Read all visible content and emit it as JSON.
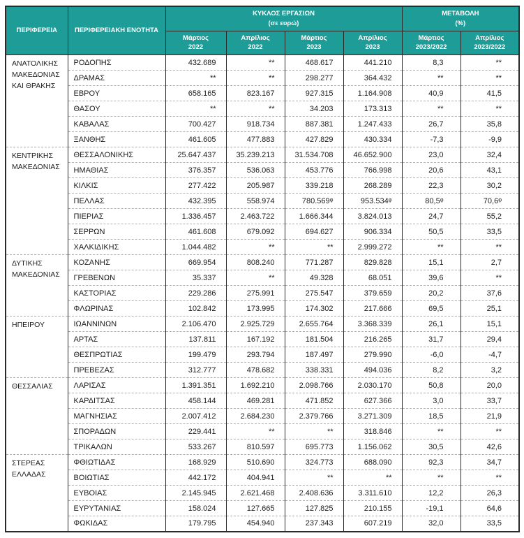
{
  "chart_data": {
    "type": "table",
    "header": {
      "col_region": "ΠΕΡΙΦΕΡΕΙΑ",
      "col_unit": "ΠΕΡΙΦΕΡΕΙΑΚΗ ΕΝΟΤΗΤΑ",
      "group_turnover": {
        "line1": "ΚΥΚΛΟΣ ΕΡΓΑΣΙΩΝ",
        "line2": "(σε ευρώ)"
      },
      "group_change": {
        "line1": "ΜΕΤΑΒΟΛΗ",
        "line2": "(%)"
      },
      "subcolumns": [
        {
          "line1": "Μάρτιος",
          "line2": "2022"
        },
        {
          "line1": "Απρίλιος",
          "line2": "2022"
        },
        {
          "line1": "Μάρτιος",
          "line2": "2023"
        },
        {
          "line1": "Απρίλιος",
          "line2": "2023"
        },
        {
          "line1": "Μάρτιος",
          "line2": "2023/2022"
        },
        {
          "line1": "Απρίλιος",
          "line2": "2023/2022"
        }
      ]
    },
    "missing_data_marker": "**",
    "groups": [
      {
        "region": "ΑΝΑΤΟΛΙΚΗΣ ΜΑΚΕΔΟΝΙΑΣ ΚΑΙ ΘΡΑΚΗΣ",
        "rows": [
          {
            "unit": "ΡΟΔΟΠΗΣ",
            "values": [
              "432.689",
              "**",
              "468.617",
              "441.210",
              "8,3",
              "**"
            ]
          },
          {
            "unit": "ΔΡΑΜΑΣ",
            "values": [
              "**",
              "**",
              "298.277",
              "364.432",
              "**",
              "**"
            ]
          },
          {
            "unit": "ΕΒΡΟΥ",
            "values": [
              "658.165",
              "823.167",
              "927.315",
              "1.164.908",
              "40,9",
              "41,5"
            ]
          },
          {
            "unit": "ΘΑΣΟΥ",
            "values": [
              "**",
              "**",
              "34.203",
              "173.313",
              "**",
              "**"
            ]
          },
          {
            "unit": "ΚΑΒΑΛΑΣ",
            "values": [
              "700.427",
              "918.734",
              "887.381",
              "1.247.433",
              "26,7",
              "35,8"
            ]
          },
          {
            "unit": "ΞΑΝΘΗΣ",
            "values": [
              "461.605",
              "477.883",
              "427.829",
              "430.334",
              "-7,3",
              "-9,9"
            ]
          }
        ]
      },
      {
        "region": "ΚΕΝΤΡΙΚΗΣ ΜΑΚΕΔΟΝΙΑΣ",
        "rows": [
          {
            "unit": "ΘΕΣΣΑΛΟΝΙΚΗΣ",
            "values": [
              "25.647.437",
              "35.239.213",
              "31.534.708",
              "46.652.900",
              "23,0",
              "32,4"
            ]
          },
          {
            "unit": "ΗΜΑΘΙΑΣ",
            "values": [
              "376.357",
              "536.063",
              "453.776",
              "766.998",
              "20,6",
              "43,1"
            ]
          },
          {
            "unit": "ΚΙΛΚΙΣ",
            "values": [
              "277.422",
              "205.987",
              "339.218",
              "268.289",
              "22,3",
              "30,2"
            ]
          },
          {
            "unit": "ΠΕΛΛΑΣ",
            "values": [
              "432.395",
              "558.974",
              "780.569ᵠ",
              "953.534ᵠ",
              "80,5ᵠ",
              "70,6ᵠ"
            ]
          },
          {
            "unit": "ΠΙΕΡΙΑΣ",
            "values": [
              "1.336.457",
              "2.463.722",
              "1.666.344",
              "3.824.013",
              "24,7",
              "55,2"
            ]
          },
          {
            "unit": "ΣΕΡΡΩΝ",
            "values": [
              "461.608",
              "679.092",
              "694.627",
              "906.334",
              "50,5",
              "33,5"
            ]
          },
          {
            "unit": "ΧΑΛΚΙΔΙΚΗΣ",
            "values": [
              "1.044.482",
              "**",
              "**",
              "2.999.272",
              "**",
              "**"
            ]
          }
        ]
      },
      {
        "region": "ΔΥΤΙΚΗΣ ΜΑΚΕΔΟΝΙΑΣ",
        "rows": [
          {
            "unit": "ΚΟΖΑΝΗΣ",
            "values": [
              "669.954",
              "808.240",
              "771.287",
              "829.828",
              "15,1",
              "2,7"
            ]
          },
          {
            "unit": "ΓΡΕΒΕΝΩΝ",
            "values": [
              "35.337",
              "**",
              "49.328",
              "68.051",
              "39,6",
              "**"
            ]
          },
          {
            "unit": "ΚΑΣΤΟΡΙΑΣ",
            "values": [
              "229.286",
              "275.991",
              "275.547",
              "379.659",
              "20,2",
              "37,6"
            ]
          },
          {
            "unit": "ΦΛΩΡΙΝΑΣ",
            "values": [
              "102.842",
              "173.995",
              "174.302",
              "217.666",
              "69,5",
              "25,1"
            ]
          }
        ]
      },
      {
        "region": "ΗΠΕΙΡΟΥ",
        "rows": [
          {
            "unit": "ΙΩΑΝΝΙΝΩΝ",
            "values": [
              "2.106.470",
              "2.925.729",
              "2.655.764",
              "3.368.339",
              "26,1",
              "15,1"
            ]
          },
          {
            "unit": "ΑΡΤΑΣ",
            "values": [
              "137.811",
              "167.192",
              "181.504",
              "216.265",
              "31,7",
              "29,4"
            ]
          },
          {
            "unit": "ΘΕΣΠΡΩΤΙΑΣ",
            "values": [
              "199.479",
              "293.794",
              "187.497",
              "279.990",
              "-6,0",
              "-4,7"
            ]
          },
          {
            "unit": "ΠΡΕΒΕΖΑΣ",
            "values": [
              "312.777",
              "478.682",
              "338.331",
              "494.036",
              "8,2",
              "3,2"
            ]
          }
        ]
      },
      {
        "region": "ΘΕΣΣΑΛΙΑΣ",
        "rows": [
          {
            "unit": "ΛΑΡΙΣΑΣ",
            "values": [
              "1.391.351",
              "1.692.210",
              "2.098.766",
              "2.030.170",
              "50,8",
              "20,0"
            ]
          },
          {
            "unit": "ΚΑΡΔΙΤΣΑΣ",
            "values": [
              "458.144",
              "469.281",
              "471.852",
              "627.366",
              "3,0",
              "33,7"
            ]
          },
          {
            "unit": "ΜΑΓΝΗΣΙΑΣ",
            "values": [
              "2.007.412",
              "2.684.230",
              "2.379.766",
              "3.271.309",
              "18,5",
              "21,9"
            ]
          },
          {
            "unit": "ΣΠΟΡΑΔΩΝ",
            "values": [
              "229.441",
              "**",
              "**",
              "318.846",
              "**",
              "**"
            ]
          },
          {
            "unit": "ΤΡΙΚΑΛΩΝ",
            "values": [
              "533.267",
              "810.597",
              "695.773",
              "1.156.062",
              "30,5",
              "42,6"
            ]
          }
        ]
      },
      {
        "region": "ΣΤΕΡΕΑΣ ΕΛΛΑΔΑΣ",
        "rows": [
          {
            "unit": "ΦΘΙΩΤΙΔΑΣ",
            "values": [
              "168.929",
              "510.690",
              "324.773",
              "688.090",
              "92,3",
              "34,7"
            ]
          },
          {
            "unit": "ΒΟΙΩΤΙΑΣ",
            "values": [
              "442.172",
              "404.941",
              "**",
              "**",
              "**",
              "**"
            ]
          },
          {
            "unit": "ΕΥΒΟΙΑΣ",
            "values": [
              "2.145.945",
              "2.621.468",
              "2.408.636",
              "3.311.610",
              "12,2",
              "26,3"
            ]
          },
          {
            "unit": "ΕΥΡΥΤΑΝΙΑΣ",
            "values": [
              "158.024",
              "127.665",
              "127.825",
              "210.155",
              "-19,1",
              "64,6"
            ]
          },
          {
            "unit": "ΦΩΚΙΔΑΣ",
            "values": [
              "179.795",
              "454.940",
              "237.343",
              "607.219",
              "32,0",
              "33,5"
            ]
          }
        ]
      }
    ],
    "colors": {
      "header_bg": "#1e9c98",
      "header_text": "#ffffff",
      "body_text": "#1c1c1c",
      "grid_solid": "#2a2a2a",
      "grid_dashed": "#b0b0b0",
      "page_bg": "#ffffff"
    },
    "layout": {
      "legend_position": "none",
      "grid": "on"
    }
  }
}
